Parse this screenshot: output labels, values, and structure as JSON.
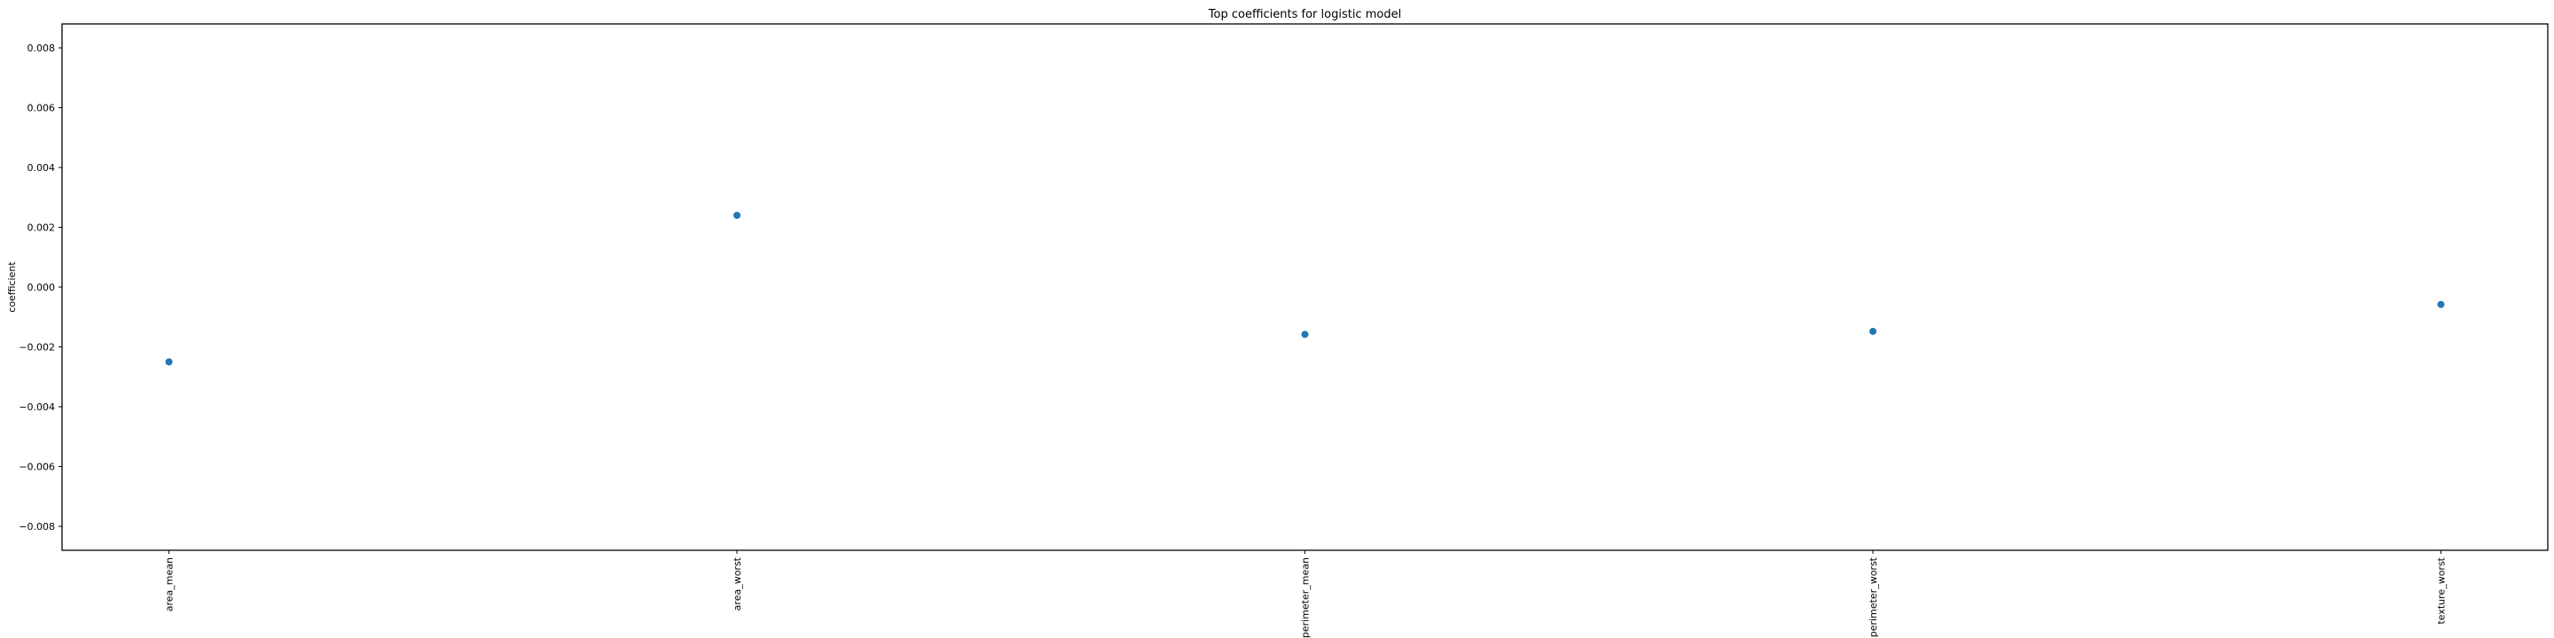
{
  "chart_data": {
    "type": "scatter",
    "title": "Top coefficients for logistic model",
    "xlabel": "",
    "ylabel": "coefficient",
    "categories": [
      "area_mean",
      "area_worst",
      "perimeter_mean",
      "perimeter_worst",
      "texture_worst"
    ],
    "values": [
      -0.0025,
      0.0024,
      -0.00158,
      -0.00148,
      -0.00058
    ],
    "ylim": [
      -0.0088,
      0.0088
    ],
    "yticks": [
      -0.008,
      -0.006,
      -0.004,
      -0.002,
      0.0,
      0.002,
      0.004,
      0.006,
      0.008
    ],
    "ytick_labels": [
      "−0.008",
      "−0.006",
      "−0.004",
      "−0.002",
      "0.000",
      "0.002",
      "0.004",
      "0.006",
      "0.008"
    ],
    "grid": false,
    "legend": false,
    "marker_color": "#1f77b4"
  }
}
